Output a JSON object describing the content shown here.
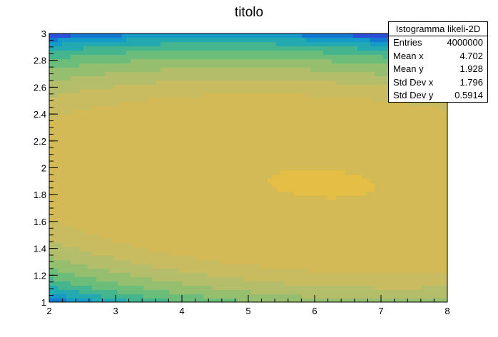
{
  "chart_data": {
    "type": "heatmap",
    "title": "titolo",
    "xlabel": "",
    "ylabel": "",
    "xlim": [
      2,
      8
    ],
    "ylim": [
      1,
      3
    ],
    "x_ticks": [
      2,
      3,
      4,
      5,
      6,
      7,
      8
    ],
    "y_ticks": [
      1,
      1.2,
      1.4,
      1.6,
      1.8,
      2,
      2.2,
      2.4,
      2.6,
      2.8,
      3
    ],
    "peak": {
      "x": 6.1,
      "y": 1.88
    },
    "contour_levels": 10,
    "colormap": [
      "#2a4fd8",
      "#1478d2",
      "#1499c9",
      "#22aab0",
      "#45b58f",
      "#6dbd7a",
      "#95bf6e",
      "#b4bd69",
      "#c8bb60",
      "#d4ba57",
      "#e5bf45"
    ],
    "stats": {
      "name": "Istogramma likeli-2D",
      "rows": [
        {
          "label": "Entries",
          "value": "4000000"
        },
        {
          "label": "Mean x",
          "value": "4.702"
        },
        {
          "label": "Mean y",
          "value": "1.928"
        },
        {
          "label": "Std Dev x",
          "value": "1.796"
        },
        {
          "label": "Std Dev y",
          "value": "0.5914"
        }
      ]
    }
  }
}
